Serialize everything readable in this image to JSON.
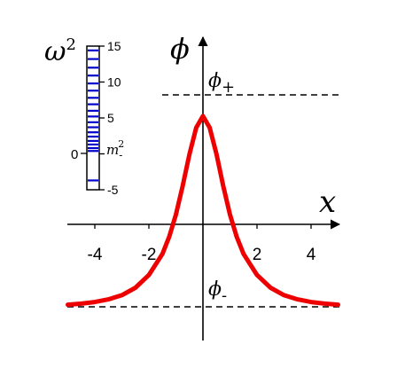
{
  "chart_data": [
    {
      "type": "line",
      "title": "",
      "xlabel": "x",
      "ylabel": "ϕ",
      "xlim": [
        -5,
        5
      ],
      "xticks": [
        -4,
        -2,
        2,
        4
      ],
      "xtick_labels": [
        "-4",
        "-2",
        "2",
        "4"
      ],
      "grid": false,
      "line_color": "#ee0000",
      "series": [
        {
          "x": [
            -5.0,
            -4.5,
            -4.0,
            -3.5,
            -3.0,
            -2.5,
            -2.0,
            -1.5,
            -1.25,
            -1.0,
            -0.75,
            -0.5,
            -0.25,
            0.0,
            0.25,
            0.5,
            0.75,
            1.0,
            1.25,
            1.5,
            2.0,
            2.5,
            3.0,
            3.5,
            4.0,
            4.5,
            5.0
          ],
          "y": [
            -0.98,
            -0.97,
            -0.955,
            -0.93,
            -0.89,
            -0.82,
            -0.7,
            -0.5,
            -0.34,
            -0.13,
            0.14,
            0.44,
            0.69,
            0.8,
            0.69,
            0.44,
            0.14,
            -0.13,
            -0.34,
            -0.5,
            -0.7,
            -0.82,
            -0.89,
            -0.93,
            -0.955,
            -0.97,
            -0.98
          ]
        }
      ],
      "asymptotes": [
        {
          "label_base": "ϕ",
          "label_sub": "+",
          "y": 1.0
        },
        {
          "label_base": "ϕ",
          "label_sub": "-",
          "y": -1.0
        }
      ]
    },
    {
      "type": "spectrum",
      "ylabel_base": "ω",
      "ylabel_sup": "2",
      "ylim": [
        -5,
        15
      ],
      "yticks": [
        -5,
        0,
        5,
        10,
        15
      ],
      "ytick_labels": [
        "-5",
        "0",
        "5",
        "10",
        "15"
      ],
      "left_tick_label": "0",
      "threshold": {
        "label_base": "m",
        "label_sup": "2",
        "label_sub": "-",
        "value": 0.3
      },
      "level_color": "#0000cc",
      "discrete_levels": [
        -3.7
      ],
      "continuum_levels": [
        0.4,
        0.8,
        1.3,
        1.8,
        2.4,
        3.0,
        3.7,
        4.4,
        5.2,
        6.0,
        6.9,
        7.8,
        8.8,
        9.8,
        10.9,
        12.0,
        13.2,
        14.4
      ]
    }
  ]
}
